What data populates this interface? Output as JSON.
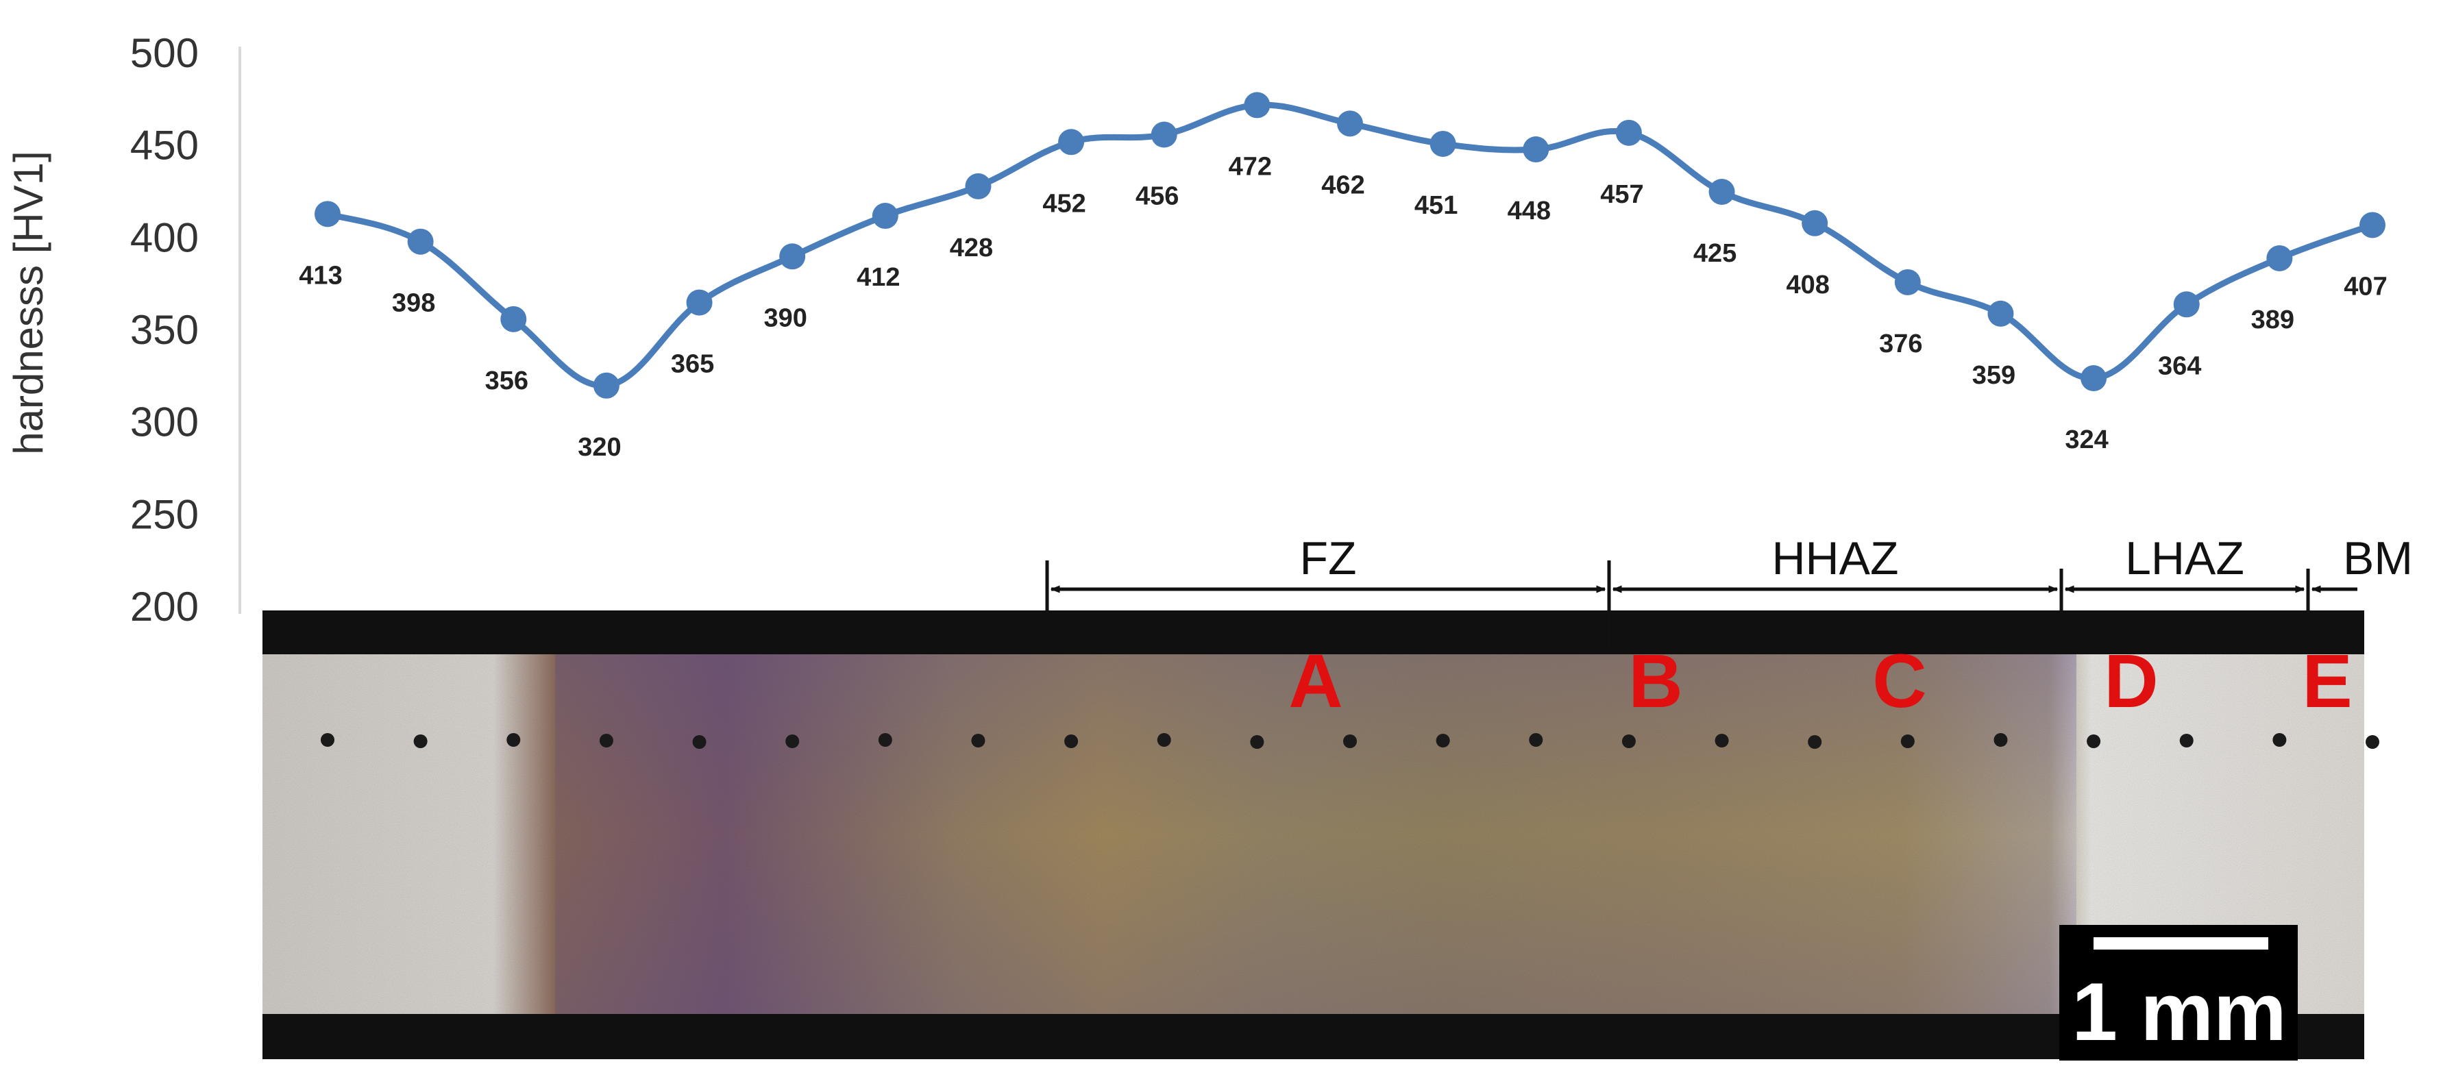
{
  "chart_data": {
    "type": "line",
    "title": "",
    "xlabel": "",
    "ylabel": "hardnesss [HV1]",
    "ylim": [
      200,
      500
    ],
    "yticks": [
      500,
      450,
      400,
      350,
      300,
      250,
      200
    ],
    "grid": false,
    "series_color": "#4a7ebb",
    "values": [
      413,
      398,
      356,
      320,
      365,
      390,
      412,
      428,
      452,
      456,
      472,
      462,
      451,
      448,
      457,
      425,
      408,
      376,
      359,
      324,
      364,
      389,
      407
    ]
  },
  "zones": [
    {
      "label": "FZ"
    },
    {
      "label": "HHAZ"
    },
    {
      "label": "LHAZ"
    },
    {
      "label": "BM"
    }
  ],
  "points": [
    "A",
    "B",
    "C",
    "D",
    "E"
  ],
  "scale_bar": {
    "label": "1 mm"
  },
  "colors": {
    "marker_letters": "#e01010",
    "axis": "#d9d9d9",
    "micrograph_dark": "#101010"
  }
}
